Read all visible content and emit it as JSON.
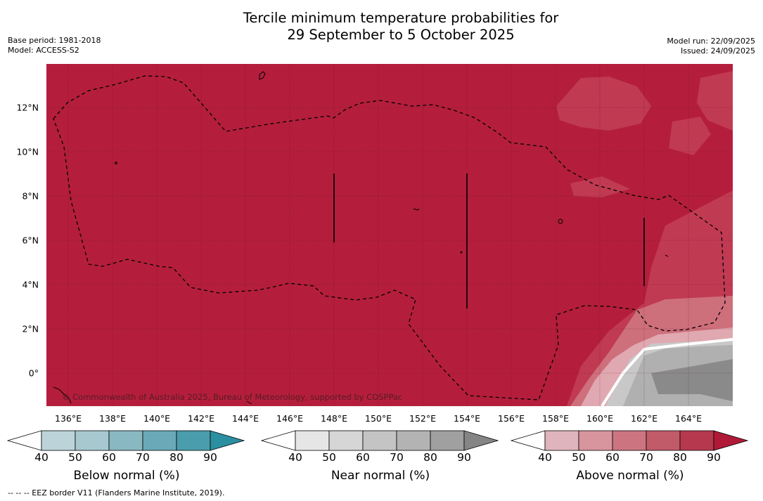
{
  "title_line1": "Tercile minimum temperature probabilities for",
  "title_line2": "29 September to 5 October 2025",
  "base_period": "Base period: 1981-2018",
  "model": "Model: ACCESS-S2",
  "model_run": "Model run: 22/09/2025",
  "issued": "Issued: 24/09/2025",
  "copyright": "© Commonwealth of Australia 2025, Bureau of Meteorology, supported by COSPPac",
  "y_ticks": [
    "12°N",
    "10°N",
    "8°N",
    "6°N",
    "4°N",
    "2°N",
    "0°"
  ],
  "x_ticks": [
    "136°E",
    "138°E",
    "140°E",
    "142°E",
    "144°E",
    "146°E",
    "148°E",
    "150°E",
    "152°E",
    "154°E",
    "156°E",
    "158°E",
    "160°E",
    "162°E",
    "164°E"
  ],
  "colorbars": {
    "below": {
      "label": "Below normal (%)",
      "ticks": [
        "40",
        "50",
        "60",
        "70",
        "80",
        "90"
      ],
      "colors": [
        "#ffffff",
        "#bcd3da",
        "#a8c8cf",
        "#8ab8c2",
        "#6aa9b7",
        "#4a9dac",
        "#2a8fa0"
      ]
    },
    "near": {
      "label": "Near normal (%)",
      "ticks": [
        "40",
        "50",
        "60",
        "70",
        "80",
        "90"
      ],
      "colors": [
        "#ffffff",
        "#e6e6e6",
        "#d6d6d6",
        "#c4c4c4",
        "#b3b3b3",
        "#a0a0a0",
        "#858585"
      ]
    },
    "above": {
      "label": "Above normal (%)",
      "ticks": [
        "40",
        "50",
        "60",
        "70",
        "80",
        "90"
      ],
      "colors": [
        "#ffffff",
        "#e0b4bc",
        "#d8959e",
        "#cc7580",
        "#c15a69",
        "#b6384f",
        "#b01a38"
      ]
    }
  },
  "footnote": "--  --  -- EEZ border V11 (Flanders Marine Institute, 2019).",
  "colors": {
    "above_dominant": "#b41e3c",
    "near_dominant": "#888888"
  }
}
